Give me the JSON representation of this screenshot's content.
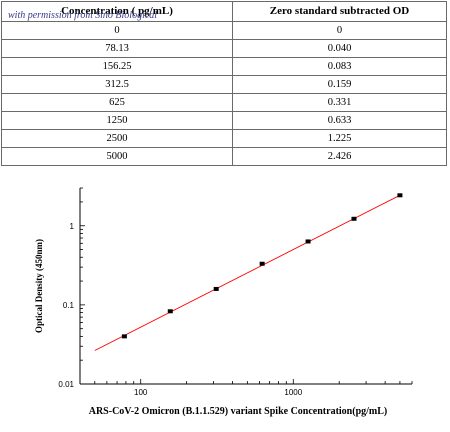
{
  "table": {
    "headers": [
      "Concentration ( pg/mL)",
      "Zero standard subtracted OD"
    ],
    "rows": [
      [
        "0",
        "0"
      ],
      [
        "78.13",
        "0.040"
      ],
      [
        "156.25",
        "0.083"
      ],
      [
        "312.5",
        "0.159"
      ],
      [
        "625",
        "0.331"
      ],
      [
        "1250",
        "0.633"
      ],
      [
        "2500",
        "1.225"
      ],
      [
        "5000",
        "2.426"
      ]
    ]
  },
  "watermark": "with permission from Sino Biological",
  "chart_data": {
    "type": "scatter",
    "xscale": "log",
    "yscale": "log",
    "xlabel": "ARS-CoV-2 Omicron (B.1.1.529) variant Spike  Concentration(pg/mL)",
    "ylabel": "Optical Density (450nm)",
    "xlim": [
      40,
      6000
    ],
    "ylim": [
      0.01,
      3
    ],
    "x_ticks": [
      {
        "value": 100,
        "label": "100"
      },
      {
        "value": 1000,
        "label": "1000"
      }
    ],
    "y_ticks": [
      {
        "value": 0.01,
        "label": "0.01"
      },
      {
        "value": 0.1,
        "label": "0.1"
      },
      {
        "value": 1,
        "label": "1"
      }
    ],
    "series": [
      {
        "x": [
          78.13,
          156.25,
          312.5,
          625,
          1250,
          2500,
          5000
        ],
        "y": [
          0.04,
          0.083,
          0.159,
          0.331,
          0.633,
          1.225,
          2.426
        ],
        "marker_color": "#000000"
      }
    ],
    "fit_line": {
      "x": [
        50,
        5000
      ],
      "y": [
        0.0265,
        2.426
      ],
      "color": "#ff0000"
    },
    "grid": false
  }
}
